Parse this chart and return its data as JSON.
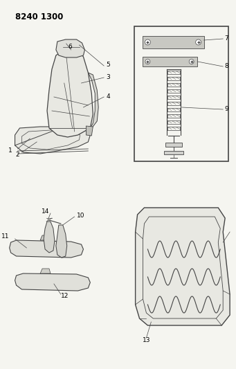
{
  "title": "8240 1300",
  "bg_color": "#f5f5f0",
  "line_color": "#444444",
  "label_color": "#000000",
  "label_fontsize": 6.5,
  "title_fontsize": 8.5
}
